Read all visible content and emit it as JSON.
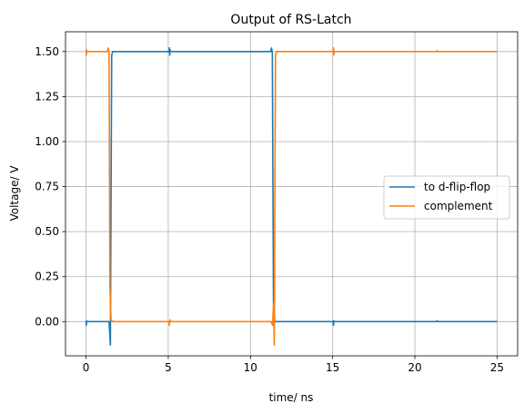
{
  "chart_data": {
    "type": "line",
    "title": "Output of RS-Latch",
    "xlabel": "time/ ns",
    "ylabel": "Voltage/ V",
    "xlim": [
      -1.25,
      26.25
    ],
    "ylim": [
      -0.19,
      1.61
    ],
    "xticks": [
      0,
      5,
      10,
      15,
      20,
      25
    ],
    "xtick_labels": [
      "0",
      "5",
      "10",
      "15",
      "20",
      "25"
    ],
    "yticks": [
      0.0,
      0.25,
      0.5,
      0.75,
      1.0,
      1.25,
      1.5
    ],
    "ytick_labels": [
      "0.00",
      "0.25",
      "0.50",
      "0.75",
      "1.00",
      "1.25",
      "1.50"
    ],
    "grid": true,
    "legend_position": "center-right",
    "series": [
      {
        "name": "to d-flip-flop",
        "color": "#1f77b4",
        "x": [
          0,
          0.02,
          0.03,
          0.05,
          1.4,
          1.48,
          1.5,
          1.56,
          1.62,
          1.72,
          5.05,
          5.07,
          5.09,
          5.11,
          5.13,
          11.22,
          11.28,
          11.33,
          11.4,
          11.48,
          11.6,
          15.02,
          15.05,
          15.07,
          15.1,
          21.3,
          21.35,
          21.4,
          25
        ],
        "y": [
          0,
          -0.02,
          0.005,
          0,
          0,
          -0.13,
          0.3,
          1.48,
          1.5,
          1.5,
          1.5,
          1.52,
          1.48,
          1.51,
          1.5,
          1.5,
          1.52,
          1.49,
          0.1,
          0,
          0,
          0,
          -0.02,
          0.005,
          0,
          0,
          0.005,
          0,
          0
        ]
      },
      {
        "name": "complement",
        "color": "#ff7f0e",
        "x": [
          0,
          0.02,
          0.03,
          0.05,
          1.3,
          1.35,
          1.4,
          1.45,
          1.52,
          1.62,
          5.05,
          5.07,
          5.09,
          5.11,
          5.13,
          11.25,
          11.35,
          11.4,
          11.45,
          11.52,
          11.6,
          15.02,
          15.05,
          15.07,
          15.1,
          21.3,
          21.35,
          21.4,
          25
        ],
        "y": [
          1.5,
          1.48,
          1.51,
          1.5,
          1.5,
          1.52,
          1.49,
          0.2,
          0.01,
          0,
          0,
          -0.02,
          0.005,
          0.01,
          0,
          0,
          -0.02,
          0.1,
          -0.13,
          1.48,
          1.5,
          1.5,
          1.52,
          1.48,
          1.5,
          1.5,
          1.505,
          1.5,
          1.5
        ]
      }
    ]
  }
}
